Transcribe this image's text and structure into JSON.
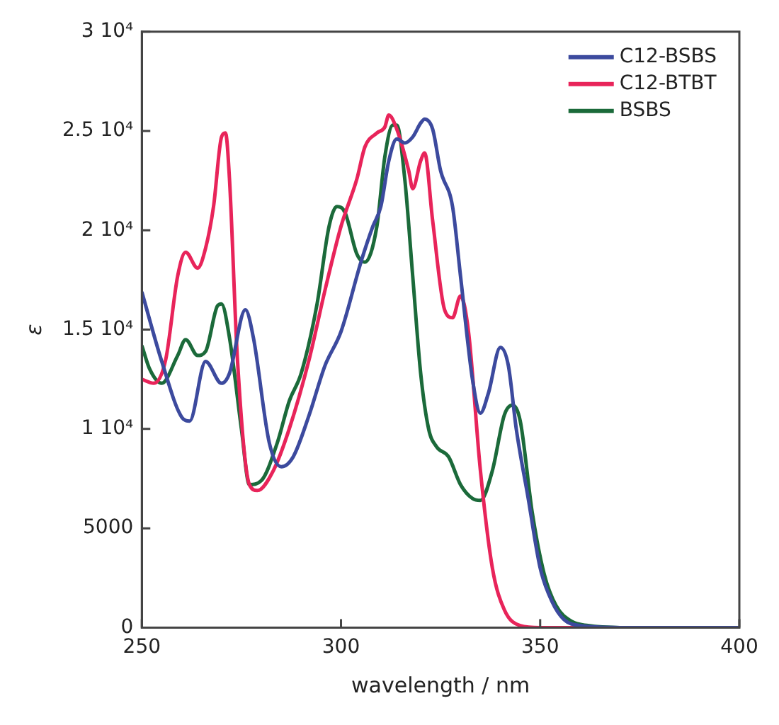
{
  "chart_data": {
    "type": "line",
    "xlabel": "wavelength / nm",
    "ylabel": "ε",
    "xlim": [
      250,
      400
    ],
    "xticks": [
      250,
      300,
      350,
      400
    ],
    "ylim": [
      0,
      30000
    ],
    "yticks": [
      0,
      5000,
      {
        "value": 10000,
        "label": "1 10⁴"
      },
      {
        "value": 15000,
        "label": "1.5 10⁴"
      },
      {
        "value": 20000,
        "label": "2 10⁴"
      },
      {
        "value": 25000,
        "label": "2.5 10⁴"
      },
      {
        "value": 30000,
        "label": "3 10⁴"
      }
    ],
    "grid": false,
    "legend": "top right",
    "marker": "none",
    "line_style": "solid",
    "series": [
      {
        "name": "C12-BSBS",
        "color": "#3c4a9e",
        "x": [
          250,
          255,
          260,
          262,
          266,
          270,
          272,
          276,
          278,
          282,
          285,
          288,
          292,
          296,
          300,
          305,
          308,
          310,
          312,
          314,
          316,
          318,
          320,
          321,
          323,
          325,
          328,
          330,
          333,
          335,
          337,
          340,
          342,
          344,
          347,
          350,
          353,
          356,
          360,
          370,
          400
        ],
        "values": [
          16900,
          13400,
          10600,
          10400,
          13400,
          12300,
          12800,
          16000,
          14600,
          9300,
          8100,
          8600,
          10700,
          13200,
          14900,
          18400,
          20200,
          21200,
          23500,
          24600,
          24400,
          24700,
          25400,
          25600,
          25100,
          23000,
          21200,
          17700,
          12500,
          10800,
          11800,
          14100,
          13200,
          10000,
          6500,
          3000,
          1300,
          400,
          100,
          0,
          0
        ]
      },
      {
        "name": "C12-BTBT",
        "color": "#e8245a",
        "x": [
          250,
          253,
          256,
          259,
          261,
          264,
          266,
          268,
          270,
          271,
          272,
          274,
          277,
          279,
          283,
          287,
          292,
          296,
          300,
          304,
          306,
          309,
          311,
          312,
          314,
          317,
          318,
          320,
          321,
          323,
          326,
          328,
          330,
          332,
          335,
          338,
          341,
          345,
          350,
          400
        ],
        "values": [
          12500,
          12300,
          13500,
          17700,
          18900,
          18100,
          19100,
          21200,
          24700,
          24900,
          22600,
          13500,
          7200,
          6900,
          7900,
          10000,
          13500,
          17000,
          20200,
          22600,
          24200,
          24900,
          25200,
          25800,
          25100,
          23000,
          22100,
          23500,
          23900,
          20500,
          16000,
          15600,
          16700,
          14900,
          7900,
          3000,
          900,
          100,
          0,
          0
        ]
      },
      {
        "name": "BSBS",
        "color": "#1b6a3a",
        "x": [
          250,
          252,
          255,
          259,
          261,
          264,
          266,
          269,
          270,
          272,
          275,
          277,
          280,
          284,
          287,
          290,
          294,
          297,
          299,
          301,
          304,
          306,
          309,
          311,
          313,
          314,
          316,
          318,
          320,
          322,
          324,
          327,
          330,
          333,
          335,
          338,
          341,
          343,
          345,
          348,
          351,
          354,
          358,
          362,
          370,
          400
        ],
        "values": [
          14200,
          13000,
          12300,
          13700,
          14500,
          13700,
          13900,
          16200,
          16300,
          14600,
          10000,
          7200,
          7400,
          9300,
          11400,
          12800,
          16300,
          20200,
          21200,
          20900,
          18800,
          18400,
          20200,
          23700,
          25300,
          25300,
          22600,
          17700,
          12800,
          10000,
          9100,
          8600,
          7200,
          6500,
          6400,
          7900,
          10700,
          11200,
          10400,
          5800,
          2700,
          1100,
          300,
          100,
          0,
          0
        ]
      }
    ]
  }
}
